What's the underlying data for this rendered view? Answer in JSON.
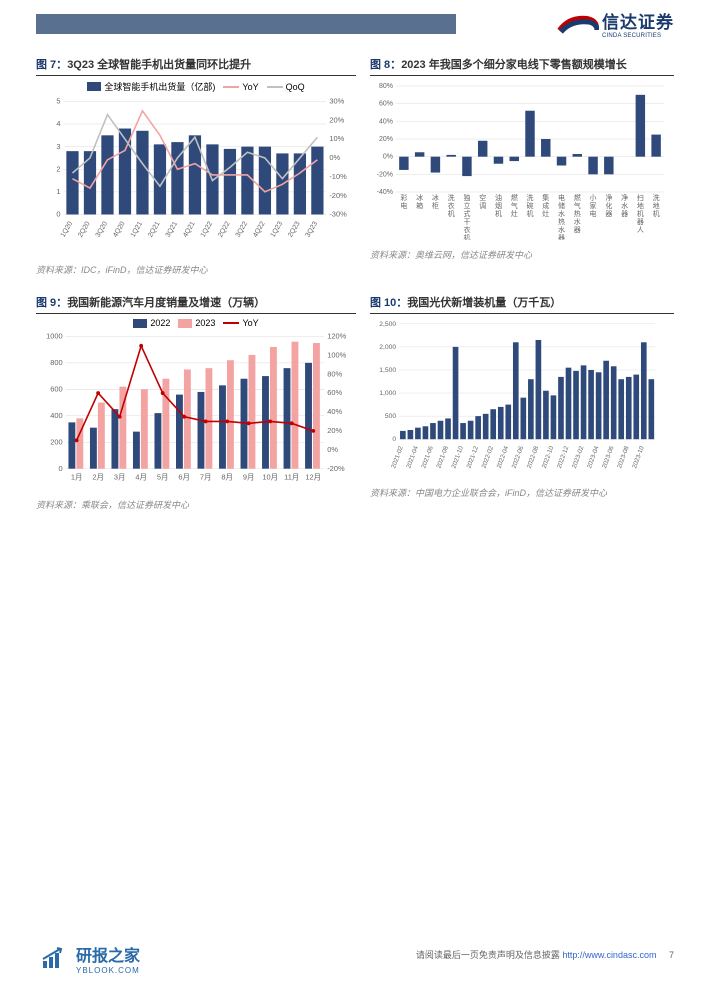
{
  "header": {
    "logo_cn": "信达证券",
    "logo_en": "CINDA SECURITIES"
  },
  "charts": {
    "c7": {
      "title_no": "图 7：",
      "title": "3Q23 全球智能手机出货量同环比提升",
      "type": "bar+line",
      "legend": [
        "全球智能手机出货量（亿部)",
        "YoY",
        "QoQ"
      ],
      "legend_colors": [
        "#2f4a7a",
        "#f4a3a3",
        "#c0c0c0"
      ],
      "categories": [
        "1Q20",
        "2Q20",
        "3Q20",
        "4Q20",
        "1Q21",
        "2Q21",
        "3Q21",
        "4Q21",
        "1Q22",
        "2Q22",
        "3Q22",
        "4Q22",
        "1Q23",
        "2Q23",
        "3Q23"
      ],
      "bar_values": [
        2.8,
        2.8,
        3.5,
        3.8,
        3.7,
        3.1,
        3.2,
        3.5,
        3.1,
        2.9,
        3.0,
        3.0,
        2.7,
        2.7,
        3.0
      ],
      "yoy": [
        -11,
        -16,
        -1,
        4,
        25,
        12,
        -6,
        -3,
        -9,
        -9,
        -9,
        -18,
        -14,
        -8,
        -1
      ],
      "qoq": [
        -8,
        0,
        23,
        10,
        -3,
        -15,
        0,
        11,
        -12,
        -5,
        3,
        0,
        -11,
        0,
        11
      ],
      "ylim_left": [
        0,
        5
      ],
      "ytick_left": [
        0,
        1,
        2,
        3,
        4,
        5
      ],
      "ylim_right": [
        -30,
        30
      ],
      "ytick_right": [
        -30,
        -20,
        -10,
        0,
        10,
        20,
        30
      ],
      "source": "资料来源：IDC，iFinD，信达证券研发中心",
      "bar_color": "#2f4a7a",
      "background_color": "#ffffff"
    },
    "c8": {
      "title_no": "图 8：",
      "title": "2023 年我国多个细分家电线下零售额规模增长",
      "type": "bar",
      "categories": [
        "彩电",
        "冰箱",
        "冰柜",
        "洗衣机",
        "独立式干衣机",
        "空调",
        "油烟机",
        "燃气灶",
        "洗碗机",
        "集成灶",
        "电储水热水器",
        "燃气热水器",
        "小家电",
        "净化器",
        "净水器",
        "扫地机器人",
        "洗地机"
      ],
      "values": [
        -15,
        5,
        -18,
        2,
        -22,
        18,
        -8,
        -5,
        52,
        20,
        -10,
        3,
        -20,
        -20,
        0,
        70,
        25
      ],
      "ylim": [
        -40,
        80
      ],
      "ytick": [
        -40,
        -20,
        0,
        20,
        40,
        60,
        80
      ],
      "bar_color": "#2f4a7a",
      "source": "资料来源：奥维云网，信达证券研发中心",
      "background_color": "#ffffff"
    },
    "c9": {
      "title_no": "图 9：",
      "title": "我国新能源汽车月度销量及增速（万辆）",
      "type": "grouped-bar+line",
      "legend": [
        "2022",
        "2023",
        "YoY"
      ],
      "legend_colors": [
        "#2f4a7a",
        "#f4a3a3",
        "#c00000"
      ],
      "categories": [
        "1月",
        "2月",
        "3月",
        "4月",
        "5月",
        "6月",
        "7月",
        "8月",
        "9月",
        "10月",
        "11月",
        "12月"
      ],
      "bar_2022": [
        350,
        310,
        450,
        280,
        420,
        560,
        580,
        630,
        680,
        700,
        760,
        800
      ],
      "bar_2023": [
        380,
        500,
        620,
        600,
        680,
        750,
        760,
        820,
        860,
        920,
        960,
        950
      ],
      "yoy": [
        10,
        60,
        35,
        110,
        60,
        35,
        30,
        30,
        28,
        30,
        28,
        20
      ],
      "ylim_left": [
        0,
        1000
      ],
      "ytick_left": [
        0,
        200,
        400,
        600,
        800,
        1000
      ],
      "ylim_right": [
        -20,
        120
      ],
      "ytick_right": [
        -20,
        0,
        20,
        40,
        60,
        80,
        100,
        120
      ],
      "source": "资料来源：乘联会，信达证券研发中心",
      "background_color": "#ffffff"
    },
    "c10": {
      "title_no": "图 10：",
      "title": "我国光伏新增装机量（万千瓦）",
      "type": "bar",
      "categories": [
        "2021-02",
        "2021-04",
        "2021-06",
        "2021-08",
        "2021-10",
        "2021-12",
        "2022-02",
        "2022-04",
        "2022-06",
        "2022-08",
        "2022-10",
        "2022-12",
        "2023-02",
        "2023-04",
        "2023-06",
        "2023-08",
        "2023-10"
      ],
      "extra_bars_count": 34,
      "values": [
        180,
        200,
        250,
        280,
        350,
        400,
        450,
        2000,
        350,
        400,
        500,
        550,
        650,
        700,
        750,
        2100,
        900,
        1300,
        2150,
        1050,
        950,
        1350,
        1550,
        1480,
        1600,
        1500,
        1450,
        1700,
        1580,
        1300,
        1350,
        1400,
        2100,
        1300
      ],
      "ylim": [
        0,
        2500
      ],
      "ytick": [
        0,
        500,
        1000,
        1500,
        2000,
        2500
      ],
      "bar_color": "#2f4a7a",
      "source": "资料来源：中国电力企业联合会，iFinD，信达证券研发中心",
      "background_color": "#ffffff"
    }
  },
  "footer": {
    "text": "请阅读最后一页免责声明及信息披露",
    "url": "http://www.cindasc.com",
    "page": "7"
  },
  "watermark": {
    "cn": "研报之家",
    "en": "YBLOOK.COM"
  }
}
